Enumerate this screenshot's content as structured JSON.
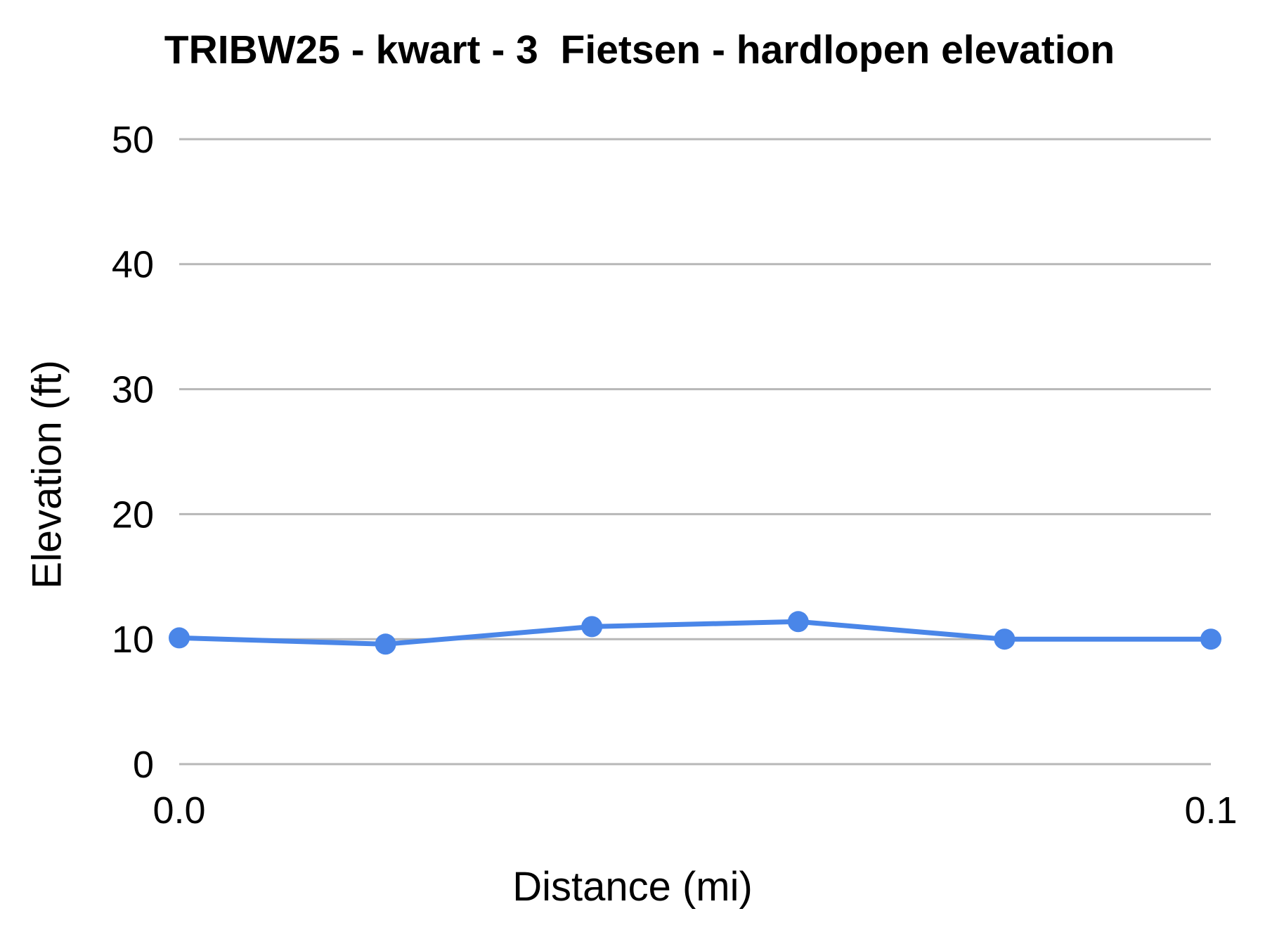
{
  "chart_data": {
    "type": "line",
    "title": "TRIBW25 - kwart - 3  Fietsen - hardlopen elevation",
    "xlabel": "Distance (mi)",
    "ylabel": "Elevation (ft)",
    "x": [
      0,
      0.02,
      0.04,
      0.06,
      0.08,
      0.1
    ],
    "values": [
      10.1,
      9.6,
      11.0,
      11.4,
      10.0,
      10.0
    ],
    "series_name": "elevation",
    "xlim": [
      0,
      0.1
    ],
    "ylim": [
      0,
      50
    ],
    "yticks": [
      0,
      10,
      20,
      30,
      40,
      50
    ],
    "ytick_labels": [
      "0",
      "10",
      "20",
      "30",
      "40",
      "50"
    ],
    "xticks": [
      0,
      0.1
    ],
    "xtick_labels": [
      "0.0",
      "0.1"
    ],
    "grid": true,
    "legend": "none",
    "line_color": "#4a86e8",
    "grid_color": "#b7b7b7",
    "text_color": "#000000",
    "background_color": "#ffffff",
    "marker_radius": 15,
    "line_width": 7,
    "tick_font_size": 54,
    "layout_note": "single line series, markers on, horizontal gridlines only"
  }
}
